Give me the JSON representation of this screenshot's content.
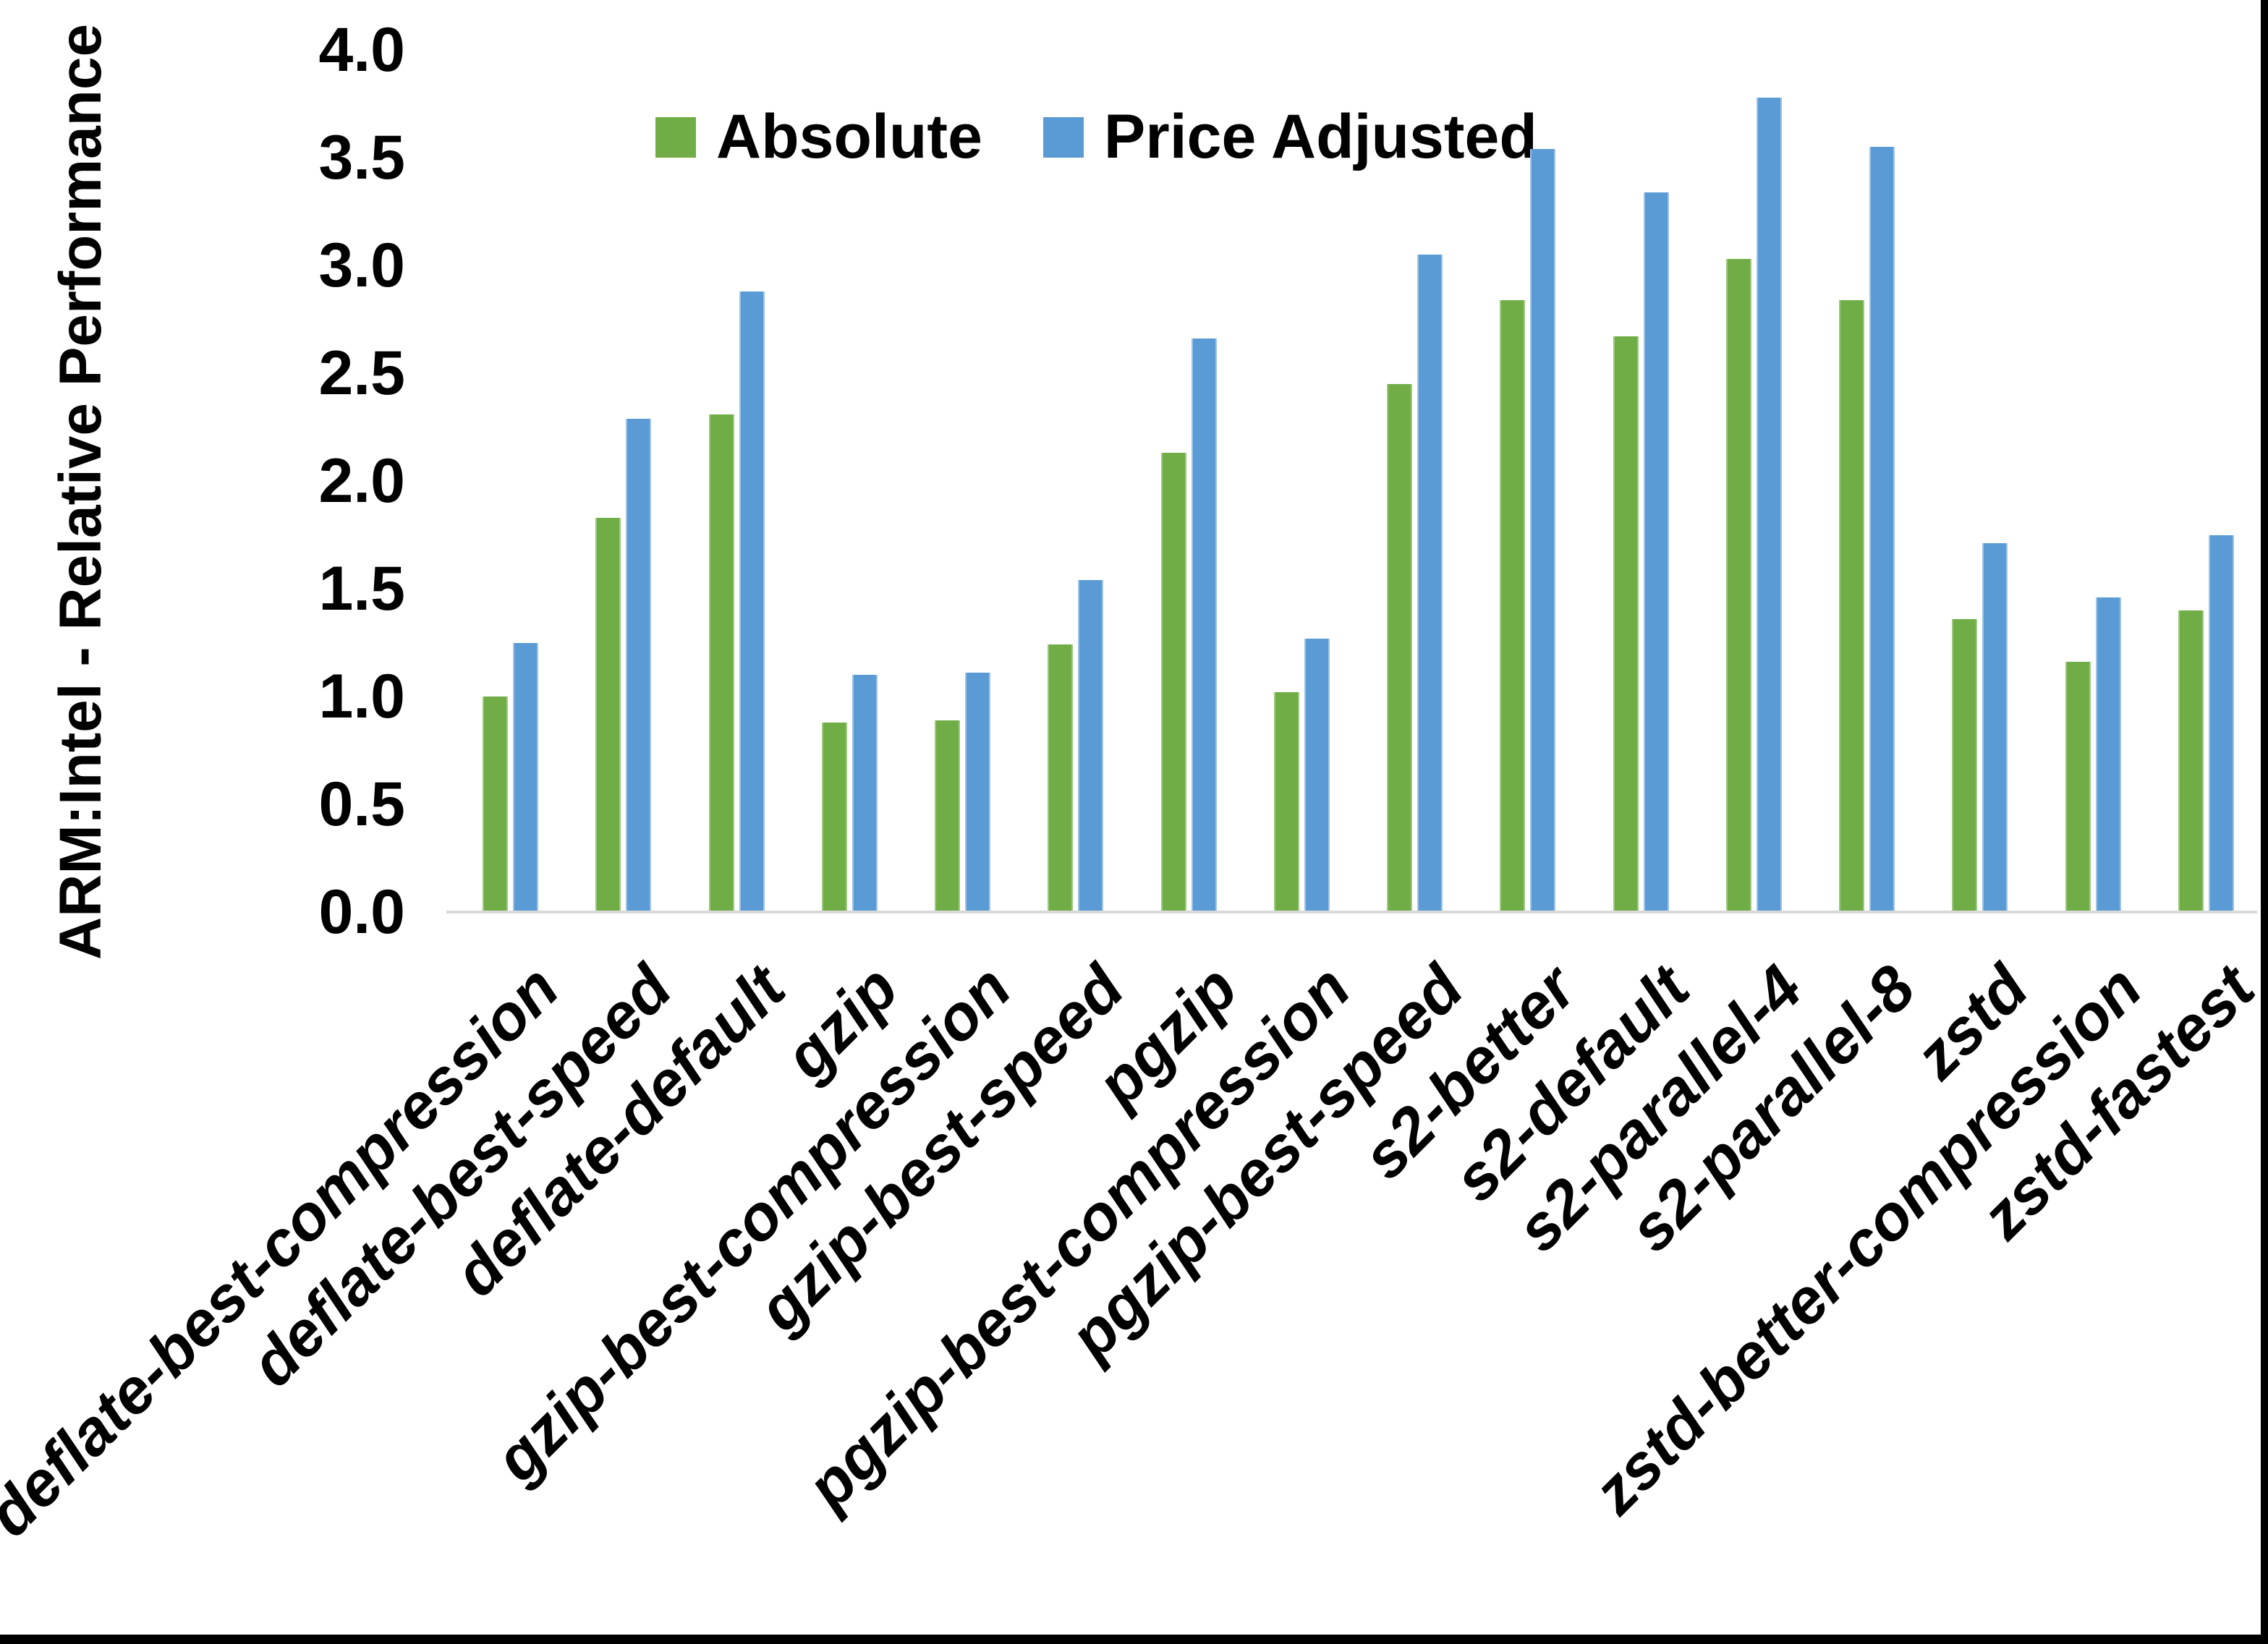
{
  "chart_data": {
    "type": "bar",
    "title": "",
    "ylabel": "ARM:Intel - Relative Performance",
    "xlabel": "",
    "ylim": [
      0.0,
      4.0
    ],
    "ytick_step": 0.5,
    "ytick_labels": [
      "4.0",
      "3.5",
      "3.0",
      "2.5",
      "2.0",
      "1.5",
      "1.0",
      "0.5",
      "0.0"
    ],
    "grid": false,
    "legend_position": "top",
    "categories": [
      "deflate-best-compression",
      "deflate-best-speed",
      "deflate-default",
      "gzip",
      "gzip-best-compression",
      "gzip-best-speed",
      "pgzip",
      "pgzip-best-compression",
      "pgzip-best-speed",
      "s2-better",
      "s2-default",
      "s2-parallel-4",
      "s2-parallel-8",
      "zstd",
      "zstd-better-compression",
      "zstd-fastest"
    ],
    "series": [
      {
        "name": "Absolute",
        "color": "#70AD47",
        "edge_color": "#9CC97E",
        "values": [
          1.0,
          1.83,
          2.31,
          0.88,
          0.89,
          1.24,
          2.13,
          1.02,
          2.45,
          2.84,
          2.67,
          3.03,
          2.84,
          1.36,
          1.16,
          1.4
        ]
      },
      {
        "name": "Price Adjusted",
        "color": "#5B9BD5",
        "edge_color": "#9DC3E6",
        "values": [
          1.25,
          2.29,
          2.88,
          1.1,
          1.11,
          1.54,
          2.66,
          1.27,
          3.05,
          3.54,
          3.34,
          3.78,
          3.55,
          1.71,
          1.46,
          1.75
        ]
      }
    ]
  },
  "axis": {
    "baseline_color": "#D9D9D9",
    "text_color": "#000000"
  },
  "frame": {
    "border_color": "#000000"
  }
}
